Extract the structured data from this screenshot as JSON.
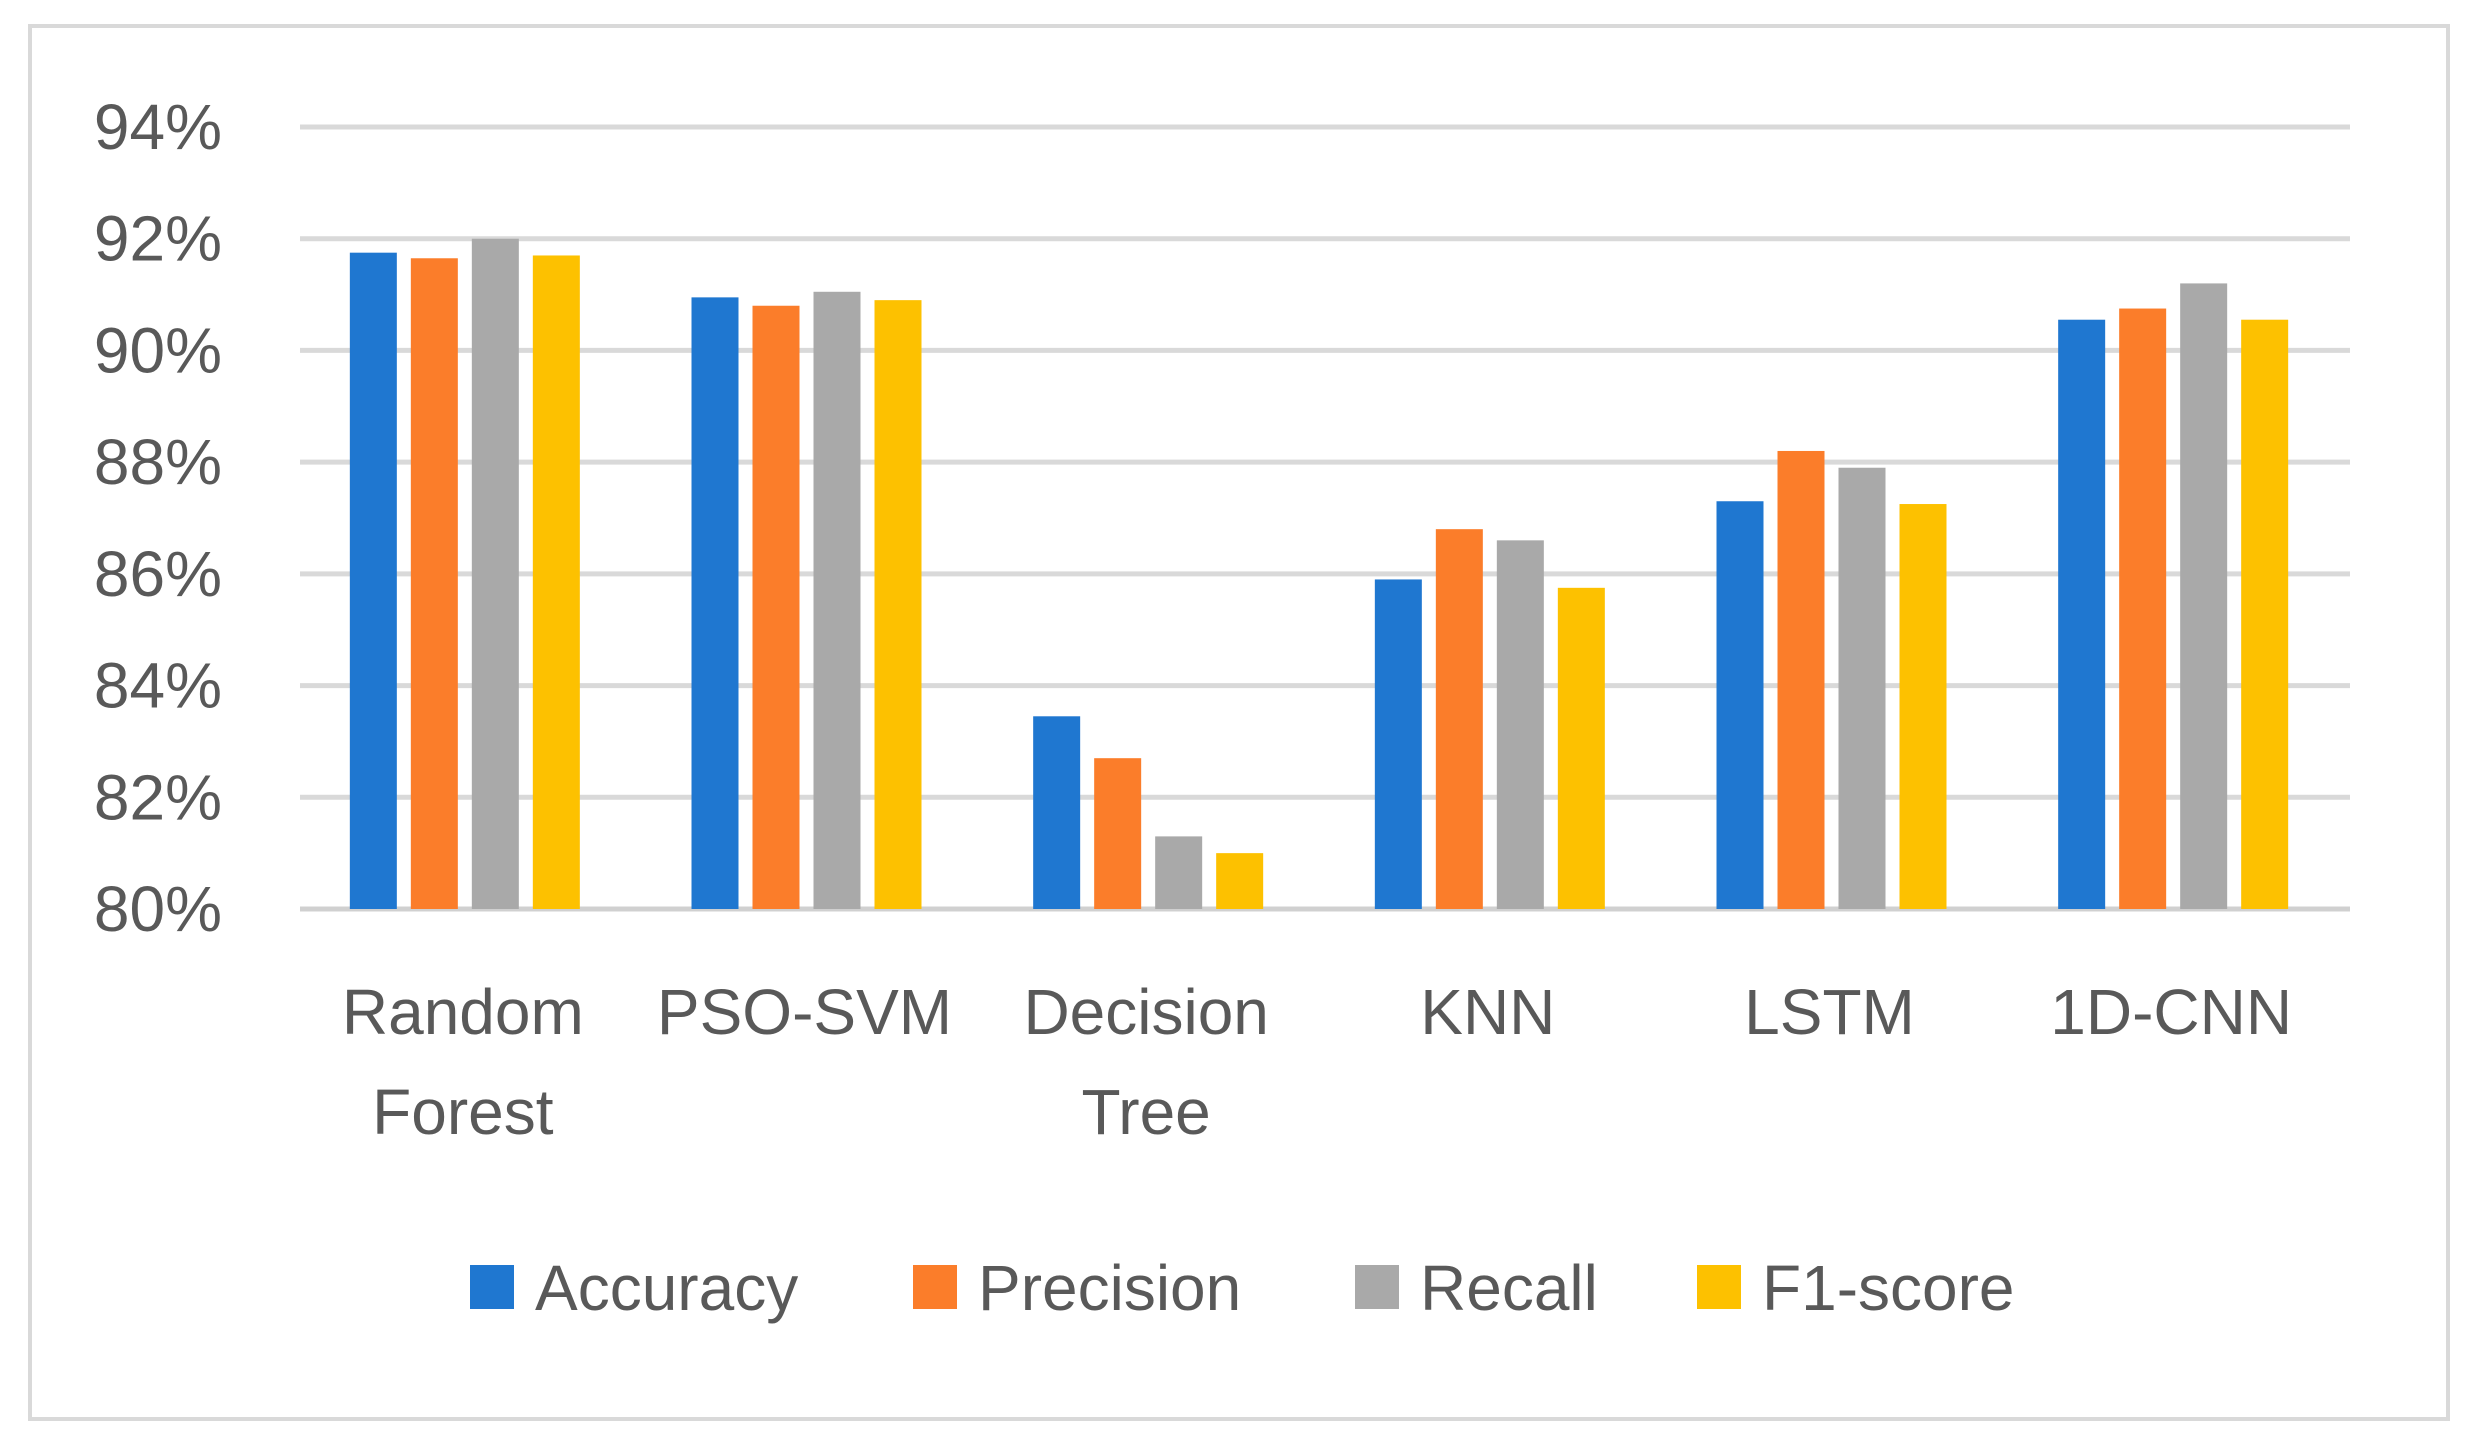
{
  "chart_data": {
    "type": "bar",
    "title": "",
    "xlabel": "",
    "ylabel": "",
    "ylim": [
      80,
      94
    ],
    "yticks": [
      "80%",
      "82%",
      "84%",
      "86%",
      "88%",
      "90%",
      "92%",
      "94%"
    ],
    "categories": [
      [
        "Random",
        "Forest"
      ],
      [
        "PSO-SVM"
      ],
      [
        "Decision",
        "Tree"
      ],
      [
        "KNN"
      ],
      [
        "LSTM"
      ],
      [
        "1D-CNN"
      ]
    ],
    "series": [
      {
        "name": "Accuracy",
        "color": "#1f77d0",
        "values": [
          91.75,
          90.95,
          83.45,
          85.9,
          87.3,
          90.55
        ]
      },
      {
        "name": "Precision",
        "color": "#fb7d2a",
        "values": [
          91.65,
          90.8,
          82.7,
          86.8,
          88.2,
          90.75
        ]
      },
      {
        "name": "Recall",
        "color": "#a9a9a9",
        "values": [
          92.0,
          91.05,
          81.3,
          86.6,
          87.9,
          91.2
        ]
      },
      {
        "name": "F1-score",
        "color": "#fdc100",
        "values": [
          91.7,
          90.9,
          81.0,
          85.75,
          87.25,
          90.55
        ]
      }
    ],
    "grid": true,
    "legend": "bottom"
  }
}
